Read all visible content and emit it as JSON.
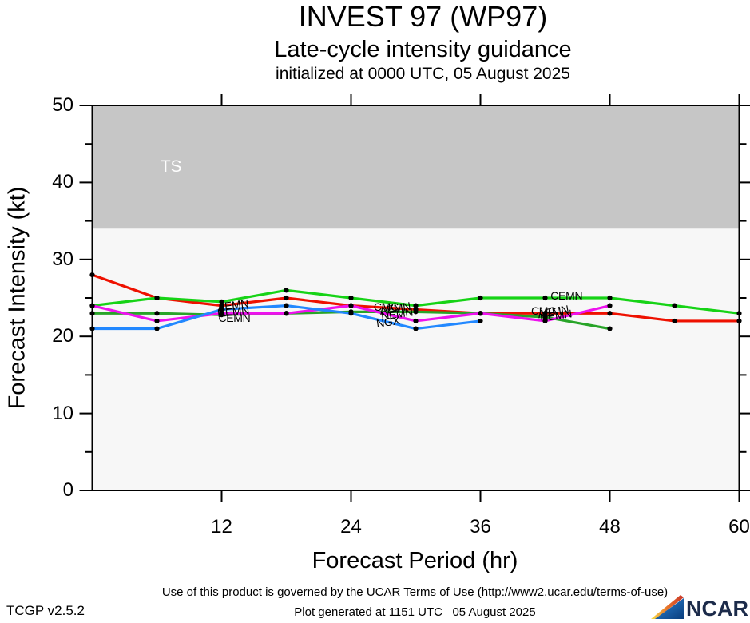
{
  "title": {
    "line1": "INVEST 97 (WP97)",
    "line2": "Late-cycle intensity guidance",
    "line3": "initialized at 0000 UTC, 05 August 2025"
  },
  "chart_data": {
    "type": "line",
    "x": [
      0,
      6,
      12,
      18,
      24,
      30,
      36,
      42,
      48,
      54,
      60
    ],
    "xlabel": "Forecast Period (hr)",
    "ylabel": "Forecast Intensity (kt)",
    "xlim": [
      0,
      60
    ],
    "ylim": [
      0,
      50
    ],
    "xticks": [
      12,
      24,
      36,
      48,
      60
    ],
    "yticks": [
      0,
      10,
      20,
      30,
      40,
      50
    ],
    "yticks_minor": [
      5,
      15,
      25,
      35,
      45
    ],
    "grid": false,
    "plot_bg": "#f7f7f7",
    "band": {
      "from": 34,
      "to": 50,
      "color": "#c6c6c6"
    },
    "marker_color": "#000000",
    "series": [
      {
        "name": "CMC",
        "color": "#ee1100",
        "values": [
          28,
          25,
          24,
          25,
          24,
          23.5,
          23,
          23,
          23,
          22,
          22
        ]
      },
      {
        "name": "CEMN",
        "color": "#16d316",
        "values": [
          24,
          25,
          24.5,
          26,
          25,
          24,
          25,
          25,
          25,
          24,
          23
        ]
      },
      {
        "name": "NEMN",
        "color": "#28a428",
        "values": [
          23,
          23,
          22.8,
          23,
          23.2,
          23.2,
          23,
          22.5,
          21,
          null,
          null
        ]
      },
      {
        "name": "AEMN",
        "color": "#ee11ee",
        "values": [
          24,
          22,
          23,
          23,
          24,
          22,
          23,
          22,
          24,
          null,
          null
        ]
      },
      {
        "name": "NGX",
        "color": "#2288ff",
        "values": [
          21,
          21,
          23.5,
          24,
          23,
          21,
          22,
          null,
          null,
          null,
          null
        ]
      }
    ],
    "annotations": [
      {
        "text": "TS",
        "hr": 7.3,
        "kt": 42.0,
        "color": "#ffffff",
        "size": 21,
        "align": "center",
        "rot": 0
      },
      {
        "text": "AEMN",
        "hr": 11.6,
        "kt": 24.1,
        "color": "#000000",
        "size": 14,
        "align": "left",
        "rot": -8
      },
      {
        "text": "NEMN",
        "hr": 11.6,
        "kt": 23.2,
        "color": "#000000",
        "size": 14,
        "align": "left",
        "rot": -6
      },
      {
        "text": "CEMN",
        "hr": 11.7,
        "kt": 22.4,
        "color": "#000000",
        "size": 14,
        "align": "left",
        "rot": 0
      },
      {
        "text": "CMC",
        "hr": 26.1,
        "kt": 23.9,
        "color": "#000000",
        "size": 14,
        "align": "left",
        "rot": 0
      },
      {
        "text": "AEMN",
        "hr": 26.6,
        "kt": 23.7,
        "color": "#000000",
        "size": 14,
        "align": "left",
        "rot": -10
      },
      {
        "text": "NEMN",
        "hr": 26.8,
        "kt": 22.9,
        "color": "#000000",
        "size": 14,
        "align": "left",
        "rot": -8
      },
      {
        "text": "NGX",
        "hr": 26.3,
        "kt": 21.9,
        "color": "#000000",
        "size": 14,
        "align": "left",
        "rot": -8
      },
      {
        "text": "CEMN",
        "hr": 42.5,
        "kt": 25.3,
        "color": "#000000",
        "size": 14,
        "align": "left",
        "rot": 0
      },
      {
        "text": "CMC",
        "hr": 40.7,
        "kt": 23.3,
        "color": "#000000",
        "size": 14,
        "align": "left",
        "rot": 0
      },
      {
        "text": "AEMN",
        "hr": 41.3,
        "kt": 23.2,
        "color": "#000000",
        "size": 14,
        "align": "left",
        "rot": -10
      },
      {
        "text": "NEMN",
        "hr": 41.5,
        "kt": 22.7,
        "color": "#000000",
        "size": 14,
        "align": "left",
        "rot": -8
      }
    ]
  },
  "footer": {
    "terms": "Use of this product is governed by the UCAR Terms of Use (http://www2.ucar.edu/terms-of-use)",
    "version": "TCGP v2.5.2",
    "generated": "Plot generated at 1151 UTC   05 August 2025",
    "logo_text": "NCAR"
  }
}
